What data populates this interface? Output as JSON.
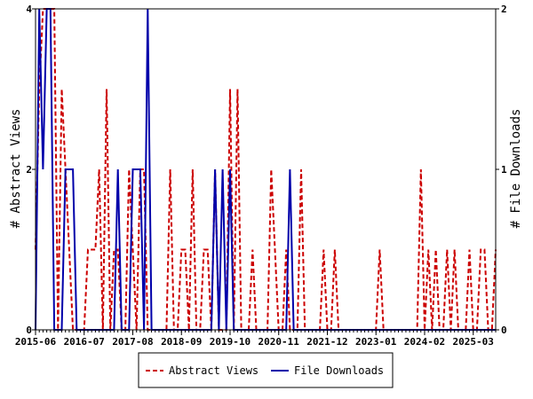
{
  "chart_data": {
    "type": "line",
    "title": "",
    "xlabel": "",
    "ylabel": "# Abstract Views",
    "y2label": "# File Downloads",
    "ylim": [
      0,
      4
    ],
    "y2lim": [
      0,
      2
    ],
    "yticks": [
      "0",
      "2",
      "4"
    ],
    "y2ticks": [
      "0",
      "1",
      "2"
    ],
    "x_tick_labels": [
      "2015-06",
      "2016-07",
      "2017-08",
      "2018-09",
      "2019-10",
      "2020-11",
      "2021-12",
      "2023-01",
      "2024-02",
      "2025-03"
    ],
    "x_start": "2015-06",
    "x_end": "2025-09",
    "legend_position": "bottom",
    "grid": false,
    "series": [
      {
        "name": "Abstract Views",
        "axis": "left",
        "color": "#cc0000",
        "style": "dashed",
        "points": [
          [
            "2015-06",
            1
          ],
          [
            "2015-07",
            3
          ],
          [
            "2015-08",
            4
          ],
          [
            "2015-09",
            4
          ],
          [
            "2015-10",
            4
          ],
          [
            "2015-11",
            4
          ],
          [
            "2015-12",
            0
          ],
          [
            "2016-01",
            3
          ],
          [
            "2016-02",
            2
          ],
          [
            "2016-03",
            1
          ],
          [
            "2016-04",
            0
          ],
          [
            "2016-05",
            0
          ],
          [
            "2016-06",
            0
          ],
          [
            "2016-07",
            0
          ],
          [
            "2016-08",
            1
          ],
          [
            "2016-09",
            1
          ],
          [
            "2016-10",
            1
          ],
          [
            "2016-11",
            2
          ],
          [
            "2016-12",
            0
          ],
          [
            "2017-01",
            3
          ],
          [
            "2017-02",
            0
          ],
          [
            "2017-03",
            1
          ],
          [
            "2017-04",
            1
          ],
          [
            "2017-05",
            0
          ],
          [
            "2017-06",
            0
          ],
          [
            "2017-07",
            2
          ],
          [
            "2017-08",
            1
          ],
          [
            "2017-09",
            0
          ],
          [
            "2017-10",
            2
          ],
          [
            "2017-11",
            2
          ],
          [
            "2017-12",
            0
          ],
          [
            "2018-01",
            0
          ],
          [
            "2018-02",
            0
          ],
          [
            "2018-03",
            0
          ],
          [
            "2018-04",
            0
          ],
          [
            "2018-05",
            0
          ],
          [
            "2018-06",
            2
          ],
          [
            "2018-07",
            0
          ],
          [
            "2018-08",
            0
          ],
          [
            "2018-09",
            1
          ],
          [
            "2018-10",
            1
          ],
          [
            "2018-11",
            0
          ],
          [
            "2018-12",
            2
          ],
          [
            "2019-01",
            0
          ],
          [
            "2019-02",
            0
          ],
          [
            "2019-03",
            1
          ],
          [
            "2019-04",
            1
          ],
          [
            "2019-05",
            0
          ],
          [
            "2019-06",
            2
          ],
          [
            "2019-07",
            0
          ],
          [
            "2019-08",
            0
          ],
          [
            "2019-09",
            0
          ],
          [
            "2019-10",
            3
          ],
          [
            "2019-11",
            0
          ],
          [
            "2019-12",
            3
          ],
          [
            "2020-01",
            0
          ],
          [
            "2020-02",
            0
          ],
          [
            "2020-03",
            0
          ],
          [
            "2020-04",
            1
          ],
          [
            "2020-05",
            0
          ],
          [
            "2020-06",
            0
          ],
          [
            "2020-07",
            0
          ],
          [
            "2020-08",
            0
          ],
          [
            "2020-09",
            2
          ],
          [
            "2020-10",
            1
          ],
          [
            "2020-11",
            0
          ],
          [
            "2020-12",
            0
          ],
          [
            "2021-01",
            1
          ],
          [
            "2021-02",
            0
          ],
          [
            "2021-03",
            0
          ],
          [
            "2021-04",
            0
          ],
          [
            "2021-05",
            2
          ],
          [
            "2021-06",
            0
          ],
          [
            "2021-07",
            0
          ],
          [
            "2021-08",
            0
          ],
          [
            "2021-09",
            0
          ],
          [
            "2021-10",
            0
          ],
          [
            "2021-11",
            1
          ],
          [
            "2021-12",
            0
          ],
          [
            "2022-01",
            0
          ],
          [
            "2022-02",
            1
          ],
          [
            "2022-03",
            0
          ],
          [
            "2022-04",
            0
          ],
          [
            "2022-05",
            0
          ],
          [
            "2022-06",
            0
          ],
          [
            "2022-07",
            0
          ],
          [
            "2022-08",
            0
          ],
          [
            "2022-09",
            0
          ],
          [
            "2022-10",
            0
          ],
          [
            "2022-11",
            0
          ],
          [
            "2022-12",
            0
          ],
          [
            "2023-01",
            0
          ],
          [
            "2023-02",
            1
          ],
          [
            "2023-03",
            0
          ],
          [
            "2023-04",
            0
          ],
          [
            "2023-05",
            0
          ],
          [
            "2023-06",
            0
          ],
          [
            "2023-07",
            0
          ],
          [
            "2023-08",
            0
          ],
          [
            "2023-09",
            0
          ],
          [
            "2023-10",
            0
          ],
          [
            "2023-11",
            0
          ],
          [
            "2023-12",
            0
          ],
          [
            "2024-01",
            2
          ],
          [
            "2024-02",
            0
          ],
          [
            "2024-03",
            1
          ],
          [
            "2024-04",
            0
          ],
          [
            "2024-05",
            1
          ],
          [
            "2024-06",
            0
          ],
          [
            "2024-07",
            0
          ],
          [
            "2024-08",
            1
          ],
          [
            "2024-09",
            0
          ],
          [
            "2024-10",
            1
          ],
          [
            "2024-11",
            0
          ],
          [
            "2024-12",
            0
          ],
          [
            "2025-01",
            0
          ],
          [
            "2025-02",
            1
          ],
          [
            "2025-03",
            0
          ],
          [
            "2025-04",
            0
          ],
          [
            "2025-05",
            1
          ],
          [
            "2025-06",
            1
          ],
          [
            "2025-07",
            0
          ],
          [
            "2025-08",
            0
          ],
          [
            "2025-09",
            1
          ]
        ]
      },
      {
        "name": "File Downloads",
        "axis": "right",
        "color": "#0000aa",
        "style": "solid",
        "points": [
          [
            "2015-06",
            0
          ],
          [
            "2015-07",
            2
          ],
          [
            "2015-08",
            1
          ],
          [
            "2015-09",
            2
          ],
          [
            "2015-10",
            2
          ],
          [
            "2015-11",
            0
          ],
          [
            "2015-12",
            0
          ],
          [
            "2016-01",
            0
          ],
          [
            "2016-02",
            1
          ],
          [
            "2016-03",
            1
          ],
          [
            "2016-04",
            1
          ],
          [
            "2016-05",
            0
          ],
          [
            "2016-06",
            0
          ],
          [
            "2016-07",
            0
          ],
          [
            "2016-08",
            0
          ],
          [
            "2016-09",
            0
          ],
          [
            "2016-10",
            0
          ],
          [
            "2016-11",
            0
          ],
          [
            "2016-12",
            0
          ],
          [
            "2017-01",
            0
          ],
          [
            "2017-02",
            0
          ],
          [
            "2017-03",
            0
          ],
          [
            "2017-04",
            1
          ],
          [
            "2017-05",
            0
          ],
          [
            "2017-06",
            0
          ],
          [
            "2017-07",
            0
          ],
          [
            "2017-08",
            1
          ],
          [
            "2017-09",
            1
          ],
          [
            "2017-10",
            1
          ],
          [
            "2017-11",
            0
          ],
          [
            "2017-12",
            2
          ],
          [
            "2018-01",
            0
          ],
          [
            "2018-02",
            0
          ],
          [
            "2018-03",
            0
          ],
          [
            "2018-04",
            0
          ],
          [
            "2018-05",
            0
          ],
          [
            "2018-06",
            0
          ],
          [
            "2018-07",
            0
          ],
          [
            "2018-08",
            0
          ],
          [
            "2018-09",
            0
          ],
          [
            "2018-10",
            0
          ],
          [
            "2018-11",
            0
          ],
          [
            "2018-12",
            0
          ],
          [
            "2019-01",
            0
          ],
          [
            "2019-02",
            0
          ],
          [
            "2019-03",
            0
          ],
          [
            "2019-04",
            0
          ],
          [
            "2019-05",
            0
          ],
          [
            "2019-06",
            1
          ],
          [
            "2019-07",
            0
          ],
          [
            "2019-08",
            1
          ],
          [
            "2019-09",
            0
          ],
          [
            "2019-10",
            1
          ],
          [
            "2019-11",
            0
          ],
          [
            "2019-12",
            0
          ],
          [
            "2020-01",
            0
          ],
          [
            "2020-02",
            0
          ],
          [
            "2020-03",
            0
          ],
          [
            "2020-04",
            0
          ],
          [
            "2020-05",
            0
          ],
          [
            "2020-06",
            0
          ],
          [
            "2020-07",
            0
          ],
          [
            "2020-08",
            0
          ],
          [
            "2020-09",
            0
          ],
          [
            "2020-10",
            0
          ],
          [
            "2020-11",
            0
          ],
          [
            "2020-12",
            0
          ],
          [
            "2021-01",
            0
          ],
          [
            "2021-02",
            1
          ],
          [
            "2021-03",
            0
          ],
          [
            "2021-04",
            0
          ],
          [
            "2021-05",
            0
          ],
          [
            "2021-06",
            0
          ],
          [
            "2021-07",
            0
          ],
          [
            "2021-08",
            0
          ],
          [
            "2021-09",
            0
          ],
          [
            "2021-10",
            0
          ],
          [
            "2021-11",
            0
          ],
          [
            "2021-12",
            0
          ],
          [
            "2022-01",
            0
          ],
          [
            "2022-02",
            0
          ],
          [
            "2022-03",
            0
          ],
          [
            "2022-04",
            0
          ],
          [
            "2022-05",
            0
          ],
          [
            "2022-06",
            0
          ],
          [
            "2022-07",
            0
          ],
          [
            "2022-08",
            0
          ],
          [
            "2022-09",
            0
          ],
          [
            "2022-10",
            0
          ],
          [
            "2022-11",
            0
          ],
          [
            "2022-12",
            0
          ],
          [
            "2023-01",
            0
          ],
          [
            "2023-02",
            0
          ],
          [
            "2023-03",
            0
          ],
          [
            "2023-04",
            0
          ],
          [
            "2023-05",
            0
          ],
          [
            "2023-06",
            0
          ],
          [
            "2023-07",
            0
          ],
          [
            "2023-08",
            0
          ],
          [
            "2023-09",
            0
          ],
          [
            "2023-10",
            0
          ],
          [
            "2023-11",
            0
          ],
          [
            "2023-12",
            0
          ],
          [
            "2024-01",
            0
          ],
          [
            "2024-02",
            0
          ],
          [
            "2024-03",
            0
          ],
          [
            "2024-04",
            0
          ],
          [
            "2024-05",
            0
          ],
          [
            "2024-06",
            0
          ],
          [
            "2024-07",
            0
          ],
          [
            "2024-08",
            0
          ],
          [
            "2024-09",
            0
          ],
          [
            "2024-10",
            0
          ],
          [
            "2024-11",
            0
          ],
          [
            "2024-12",
            0
          ],
          [
            "2025-01",
            0
          ],
          [
            "2025-02",
            0
          ],
          [
            "2025-03",
            0
          ],
          [
            "2025-04",
            0
          ],
          [
            "2025-05",
            0
          ],
          [
            "2025-06",
            0
          ],
          [
            "2025-07",
            0
          ],
          [
            "2025-08",
            0
          ],
          [
            "2025-09",
            0
          ]
        ]
      }
    ]
  }
}
